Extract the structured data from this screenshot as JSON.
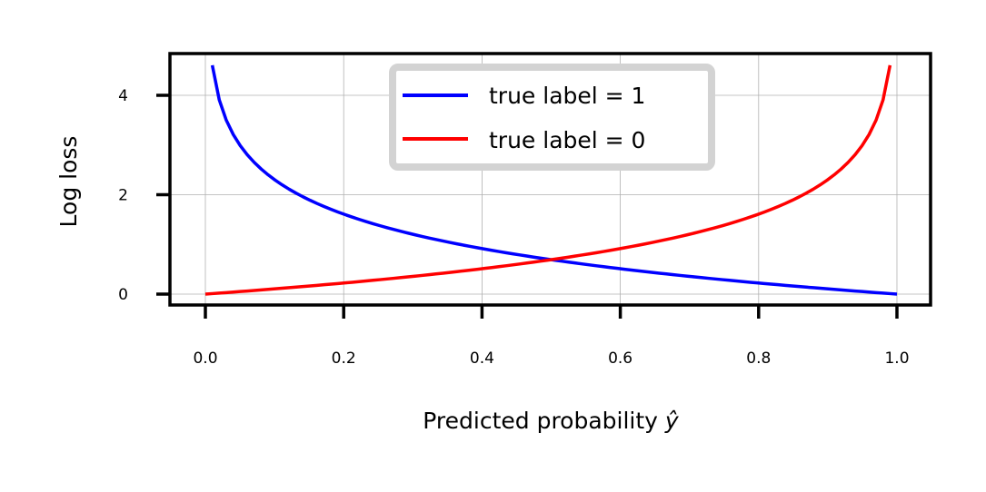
{
  "chart_data": {
    "type": "line",
    "title": "",
    "xlabel": "Predicted probability ŷ",
    "ylabel": "Log loss",
    "xlim": [
      -0.05,
      1.05
    ],
    "ylim": [
      -0.22,
      4.85
    ],
    "xticks": [
      0.0,
      0.2,
      0.4,
      0.6,
      0.8,
      1.0
    ],
    "xtick_labels": [
      "0.0",
      "0.2",
      "0.4",
      "0.6",
      "0.8",
      "1.0"
    ],
    "yticks": [
      0,
      2,
      4
    ],
    "ytick_labels": [
      "0",
      "2",
      "4"
    ],
    "grid": true,
    "legend_position": "upper center",
    "series": [
      {
        "name": "true label = 1",
        "color": "#0000ff",
        "formula": "-ln(x)",
        "x": [
          0.01,
          0.02,
          0.03,
          0.05,
          0.1,
          0.2,
          0.3,
          0.4,
          0.5,
          0.6,
          0.7,
          0.8,
          0.9,
          1.0
        ],
        "values": [
          4.61,
          3.91,
          3.51,
          3.0,
          2.3,
          1.61,
          1.2,
          0.92,
          0.69,
          0.51,
          0.36,
          0.22,
          0.11,
          0.0
        ]
      },
      {
        "name": "true label = 0",
        "color": "#ff0000",
        "formula": "-ln(1-x)",
        "x": [
          0.0,
          0.1,
          0.2,
          0.3,
          0.4,
          0.5,
          0.6,
          0.7,
          0.8,
          0.9,
          0.95,
          0.97,
          0.98,
          0.99
        ],
        "values": [
          0.0,
          0.11,
          0.22,
          0.36,
          0.51,
          0.69,
          0.92,
          1.2,
          1.61,
          2.3,
          3.0,
          3.51,
          3.91,
          4.61
        ]
      }
    ]
  },
  "legend": {
    "items": [
      {
        "label": "true label = 1",
        "color": "#0000ff"
      },
      {
        "label": "true label = 0",
        "color": "#ff0000"
      }
    ]
  },
  "axes": {
    "xlabel_main": "Predicted probability ",
    "xlabel_symbol": "ŷ",
    "ylabel": "Log loss"
  }
}
